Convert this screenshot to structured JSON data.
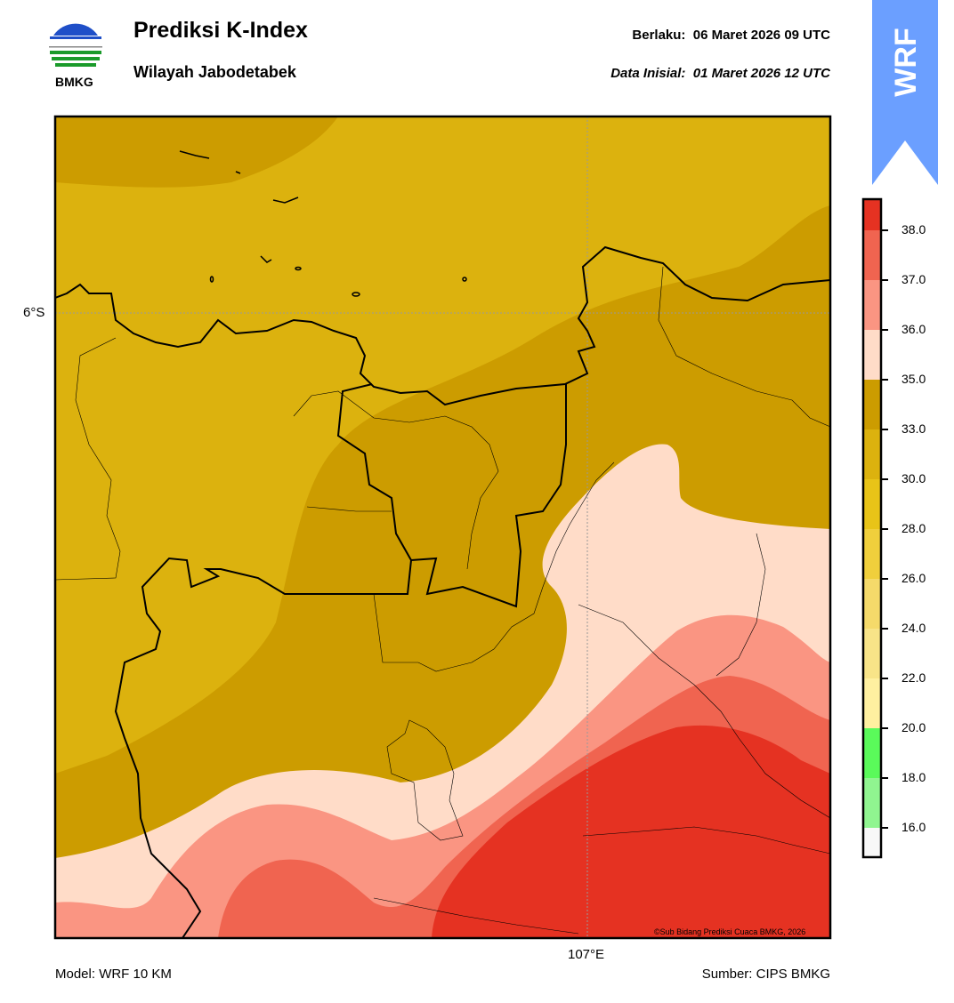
{
  "header": {
    "title": "Prediksi K-Index",
    "subtitle": "Wilayah Jabodetabek",
    "valid_label": "Berlaku:  06 Maret 2026 09 UTC",
    "init_label": "Data Inisial:  01 Maret 2026 12 UTC",
    "logo_text": "BMKG",
    "badge_text": "WRF"
  },
  "map": {
    "lat_label": "6°S",
    "lon_label": "107°E",
    "copyright": "©Sub Bidang Prediksi Cuaca BMKG, 2026",
    "colors": {
      "k30_33": "#dcb20e",
      "k33_35": "#cc9c00",
      "k35_36": "#ffdcc8",
      "k36_37": "#fa9582",
      "k37_38": "#f06450",
      "k38plus": "#e53222"
    }
  },
  "colorbar": {
    "ticks": [
      "38.0",
      "37.0",
      "36.0",
      "35.0",
      "33.0",
      "30.0",
      "28.0",
      "26.0",
      "24.0",
      "22.0",
      "20.0",
      "18.0",
      "16.0"
    ],
    "colors": [
      "#e53222",
      "#f06450",
      "#fa9582",
      "#ffdcc8",
      "#cc9c00",
      "#dcb20e",
      "#e8c418",
      "#f0cf3c",
      "#f5da6a",
      "#f8e488",
      "#fff0a0",
      "#5afa5a",
      "#90f590",
      "#f8f8f8"
    ]
  },
  "footer": {
    "model": "Model: WRF 10 KM",
    "source": "Sumber: CIPS BMKG"
  }
}
